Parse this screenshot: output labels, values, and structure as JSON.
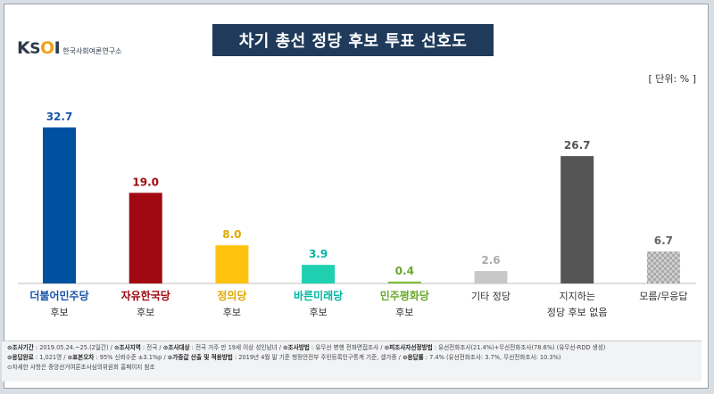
{
  "logo": {
    "mark": "KSOI",
    "sub": "한국사회여론연구소"
  },
  "title": "차기 총선 정당 후보 투표 선호도",
  "unit": "[ 단위: % ]",
  "chart_data": {
    "type": "bar",
    "title": "차기 총선 정당 후보 투표 선호도",
    "ylim": [
      0,
      35
    ],
    "grid": false,
    "categories": [
      {
        "party": "더불어민주당",
        "line2": "후보",
        "color": "#0050a0",
        "labelColor": "#1a56a8"
      },
      {
        "party": "자유한국당",
        "line2": "후보",
        "color": "#a00812",
        "labelColor": "#a00812"
      },
      {
        "party": "정의당",
        "line2": "후보",
        "color": "#ffc20e",
        "labelColor": "#e0a800"
      },
      {
        "party": "바른미래당",
        "line2": "후보",
        "color": "#1fd1b0",
        "labelColor": "#00b5a0"
      },
      {
        "party": "민주평화당",
        "line2": "후보",
        "color": "#7fbf3a",
        "labelColor": "#6aa82a"
      },
      {
        "party": "기타 정당",
        "line2": "",
        "color": "#c8c8c8",
        "labelColor": "#aaaaaa"
      },
      {
        "party": "지지하는",
        "line2": "정당 후보 없음",
        "color": "#555555",
        "labelColor": "#555555"
      },
      {
        "party": "모름/무응답",
        "line2": "",
        "color": "#bdbdbd",
        "labelColor": "#666666",
        "pattern": true
      }
    ],
    "values": [
      32.7,
      19.0,
      8.0,
      3.9,
      0.4,
      2.6,
      26.7,
      6.7
    ],
    "value_labels": [
      "32.7",
      "19.0",
      "8.0",
      "3.9",
      "0.4",
      "2.6",
      "26.7",
      "6.7"
    ]
  },
  "footer": {
    "line1": [
      {
        "k": "조사기간",
        "v": "2019.05.24.~25.(2일간)"
      },
      {
        "k": "조사지역",
        "v": "전국"
      },
      {
        "k": "조사대상",
        "v": "전국 거주 만 19세 이상 성인남녀"
      },
      {
        "k": "조사방법",
        "v": "유무선 병행 전화면접조사"
      },
      {
        "k": "피조사자선정방법",
        "v": "유선전화조사(21.4%)+무선전화조사(78.6%) (유무선-RDD 생성)"
      }
    ],
    "line2": [
      {
        "k": "응답완료",
        "v": "1,021명"
      },
      {
        "k": "표본오차",
        "v": "95% 신뢰수준 ±3.1%p"
      },
      {
        "k": "가중값 산출 및 적용방법",
        "v": "2019년 4월 말 기준 행정안전부 주민등록인구통계 기준, 셀가중"
      },
      {
        "k": "응답률",
        "v": "7.4% (유선전화조사: 3.7%, 무선전화조사: 10.3%)"
      }
    ],
    "line3": "자세한 사항은 중앙선거여론조사심의위원회 홈페이지 참조"
  }
}
